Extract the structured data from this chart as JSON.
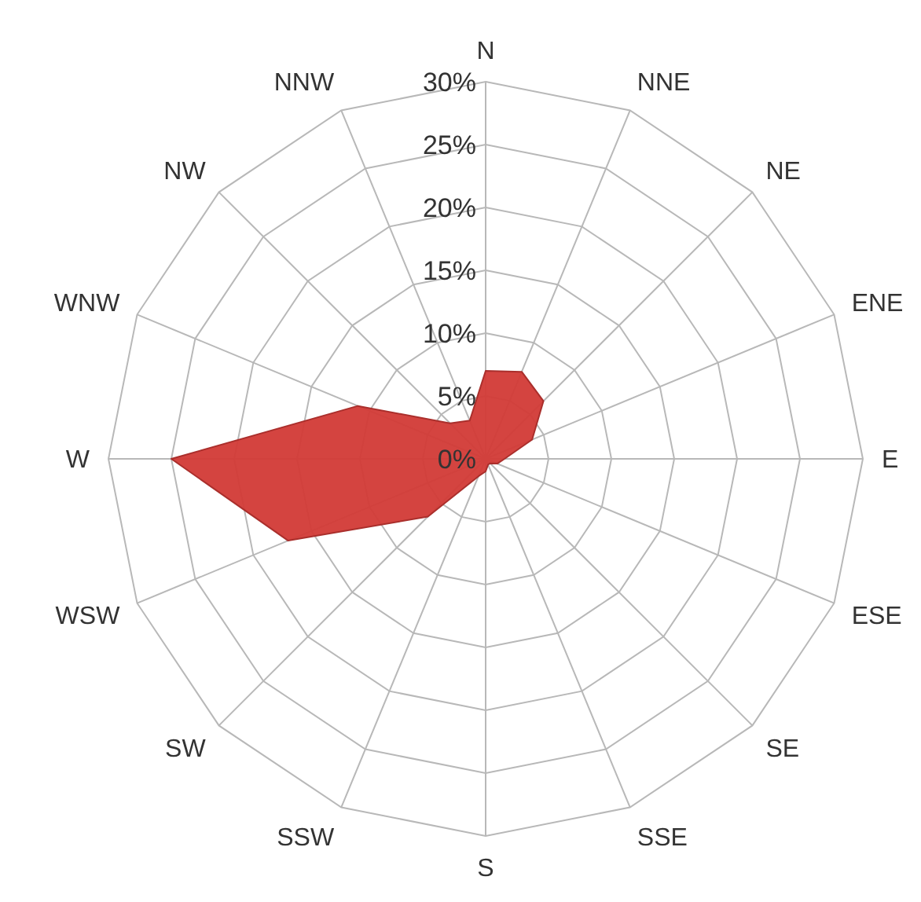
{
  "chart_data": {
    "type": "radar",
    "categories": [
      "N",
      "NNE",
      "NE",
      "ENE",
      "E",
      "ESE",
      "SE",
      "SSE",
      "S",
      "SSW",
      "SW",
      "WSW",
      "W",
      "WNW",
      "NW",
      "NNW"
    ],
    "series": [
      {
        "color": "#d23a36",
        "values": [
          7,
          7.5,
          6.5,
          4,
          1.5,
          1,
          0.5,
          0.5,
          1,
          1.5,
          6.5,
          17,
          25,
          11,
          4,
          3.3
        ]
      }
    ],
    "ylim": [
      0,
      30
    ],
    "yticks": [
      {
        "value": 0,
        "label": "0%"
      },
      {
        "value": 5,
        "label": "5%"
      },
      {
        "value": 10,
        "label": "10%"
      },
      {
        "value": 15,
        "label": "15%"
      },
      {
        "value": 20,
        "label": "20%"
      },
      {
        "value": 25,
        "label": "25%"
      },
      {
        "value": 30,
        "label": "30%"
      }
    ],
    "grid": true
  }
}
